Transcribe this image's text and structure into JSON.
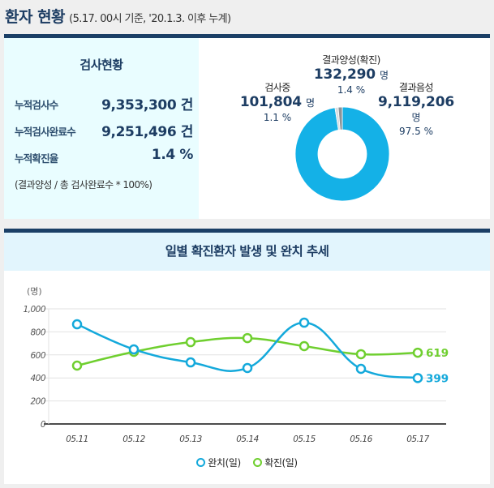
{
  "header": {
    "title": "환자 현황",
    "subtitle": "(5.17. 00시 기준, '20.1.3. 이후 누계)"
  },
  "test_status": {
    "title": "검사현황",
    "rows": [
      {
        "label": "누적검사수",
        "value": "9,353,300 건"
      },
      {
        "label": "누적검사완료수",
        "value": "9,251,496 건"
      },
      {
        "label": "누적확진율",
        "value": "1.4 %"
      }
    ],
    "note": "(결과양성 / 총 검사완료수 * 100%)"
  },
  "donut": {
    "segments": [
      {
        "name": "결과음성",
        "value": "9,119,206",
        "unit": "명",
        "percent": "97.5 %",
        "share": 97.5,
        "color": "#14b1e7"
      },
      {
        "name": "검사중",
        "value": "101,804",
        "unit": "명",
        "percent": "1.1 %",
        "share": 1.1,
        "color": "#d8dde0"
      },
      {
        "name": "결과양성(확진)",
        "value": "132,290",
        "unit": "명",
        "percent": "1.4 %",
        "share": 1.4,
        "color": "#8a9399"
      }
    ]
  },
  "trend": {
    "title": "일별 확진환자 발생 및 완치 추세"
  },
  "chart_data": {
    "type": "line",
    "title": "일별 확진환자 발생 및 완치 추세",
    "ylabel": "(명)",
    "xlabel": "",
    "ylim": [
      0,
      1000
    ],
    "yticks": [
      "0",
      "200",
      "400",
      "600",
      "800",
      "1,000"
    ],
    "ytick_values": [
      0,
      200,
      400,
      600,
      800,
      1000
    ],
    "categories": [
      "05.11",
      "05.12",
      "05.13",
      "05.14",
      "05.15",
      "05.16",
      "05.17"
    ],
    "grid": true,
    "legend_position": "bottom-center",
    "series": [
      {
        "name": "완치(일)",
        "color": "#14a9db",
        "values": [
          866,
          648,
          535,
          486,
          880,
          479,
          399
        ],
        "end_label": "399"
      },
      {
        "name": "확진(일)",
        "color": "#6fcf2f",
        "values": [
          507,
          627,
          711,
          746,
          676,
          606,
          619
        ],
        "end_label": "619"
      }
    ]
  }
}
